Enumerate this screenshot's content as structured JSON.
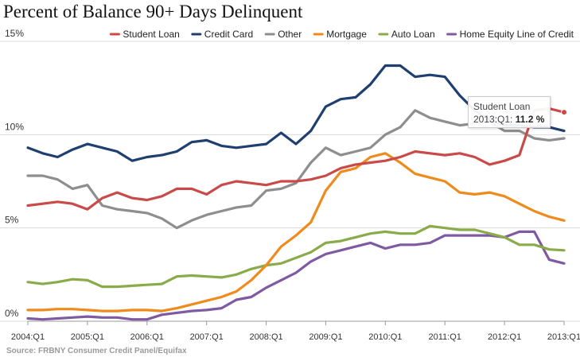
{
  "title": "Percent of Balance 90+ Days Delinquent",
  "source": "Source: FRBNY Consumer Credit Panel/Equifax",
  "tooltip": {
    "series": "Student Loan",
    "label": "2013:Q1:",
    "value": "11.2 %"
  },
  "chart_data": {
    "type": "line",
    "title": "Percent of Balance 90+ Days Delinquent",
    "xlabel": "",
    "ylabel": "",
    "x": [
      "2004:Q1",
      "2004:Q2",
      "2004:Q3",
      "2004:Q4",
      "2005:Q1",
      "2005:Q2",
      "2005:Q3",
      "2005:Q4",
      "2006:Q1",
      "2006:Q2",
      "2006:Q3",
      "2006:Q4",
      "2007:Q1",
      "2007:Q2",
      "2007:Q3",
      "2007:Q4",
      "2008:Q1",
      "2008:Q2",
      "2008:Q3",
      "2008:Q4",
      "2009:Q1",
      "2009:Q2",
      "2009:Q3",
      "2009:Q4",
      "2010:Q1",
      "2010:Q2",
      "2010:Q3",
      "2010:Q4",
      "2011:Q1",
      "2011:Q2",
      "2011:Q3",
      "2011:Q4",
      "2012:Q1",
      "2012:Q2",
      "2012:Q3",
      "2012:Q4",
      "2013:Q1"
    ],
    "xticks": [
      "2004:Q1",
      "2005:Q1",
      "2006:Q1",
      "2007:Q1",
      "2008:Q1",
      "2009:Q1",
      "2010:Q1",
      "2011:Q1",
      "2012:Q1",
      "2013:Q1"
    ],
    "yticks": [
      "0%",
      "5%",
      "10%",
      "15%"
    ],
    "ylim": [
      0,
      15
    ],
    "legend": "top-right",
    "grid": true,
    "series": [
      {
        "name": "Home Equity Line of Credit",
        "color": "#7f5aa2",
        "values": [
          0.15,
          0.1,
          0.15,
          0.2,
          0.25,
          0.2,
          0.2,
          0.1,
          0.1,
          0.35,
          0.45,
          0.55,
          0.6,
          0.7,
          1.15,
          1.3,
          1.8,
          2.2,
          2.6,
          3.2,
          3.6,
          3.8,
          4.0,
          4.2,
          3.9,
          4.1,
          4.1,
          4.2,
          4.6,
          4.6,
          4.6,
          4.6,
          4.5,
          4.8,
          4.8,
          3.3,
          3.1
        ]
      },
      {
        "name": "Auto Loan",
        "color": "#8aab4a",
        "values": [
          2.1,
          2.0,
          2.1,
          2.25,
          2.2,
          1.85,
          1.85,
          1.9,
          1.95,
          2.0,
          2.4,
          2.45,
          2.4,
          2.35,
          2.5,
          2.8,
          3.0,
          3.1,
          3.4,
          3.7,
          4.2,
          4.3,
          4.5,
          4.7,
          4.8,
          4.7,
          4.7,
          5.1,
          5.0,
          4.9,
          4.9,
          4.7,
          4.5,
          4.1,
          4.1,
          3.85,
          3.8
        ]
      },
      {
        "name": "Mortgage",
        "color": "#ee8b1c",
        "values": [
          0.6,
          0.6,
          0.65,
          0.65,
          0.6,
          0.55,
          0.55,
          0.6,
          0.6,
          0.55,
          0.7,
          0.9,
          1.1,
          1.3,
          1.6,
          2.2,
          3.0,
          4.0,
          4.6,
          5.3,
          7.0,
          8.0,
          8.2,
          8.8,
          9.0,
          8.5,
          7.9,
          7.7,
          7.5,
          6.9,
          6.8,
          6.9,
          6.7,
          6.3,
          5.9,
          5.6,
          5.4
        ]
      },
      {
        "name": "Other",
        "color": "#8e8e8e",
        "values": [
          7.8,
          7.8,
          7.6,
          7.1,
          7.3,
          6.2,
          6.0,
          5.9,
          5.8,
          5.5,
          5.0,
          5.4,
          5.7,
          5.9,
          6.1,
          6.2,
          7.0,
          7.1,
          7.4,
          8.5,
          9.3,
          8.9,
          9.1,
          9.3,
          10.0,
          10.4,
          11.3,
          10.9,
          10.7,
          10.5,
          10.6,
          10.7,
          10.2,
          10.2,
          9.8,
          9.7,
          9.8
        ]
      },
      {
        "name": "Credit Card",
        "color": "#1f3f70",
        "values": [
          9.3,
          9.0,
          8.8,
          9.2,
          9.5,
          9.3,
          9.1,
          8.6,
          8.8,
          8.9,
          9.1,
          9.6,
          9.7,
          9.4,
          9.3,
          9.4,
          9.5,
          10.1,
          9.5,
          10.2,
          11.5,
          11.9,
          12.0,
          12.7,
          13.7,
          13.7,
          13.1,
          13.2,
          13.1,
          12.1,
          11.3,
          10.8,
          10.5,
          10.5,
          10.4,
          10.4,
          10.2
        ]
      },
      {
        "name": "Student Loan",
        "color": "#c94a48",
        "values": [
          6.2,
          6.3,
          6.4,
          6.3,
          6.0,
          6.6,
          6.9,
          6.6,
          6.5,
          6.7,
          7.1,
          7.1,
          6.8,
          7.3,
          7.5,
          7.4,
          7.3,
          7.5,
          7.5,
          7.6,
          7.8,
          8.2,
          8.4,
          8.5,
          8.6,
          8.8,
          9.1,
          9.0,
          8.9,
          9.0,
          8.8,
          8.4,
          8.6,
          8.9,
          11.3,
          11.4,
          11.2
        ]
      }
    ]
  }
}
